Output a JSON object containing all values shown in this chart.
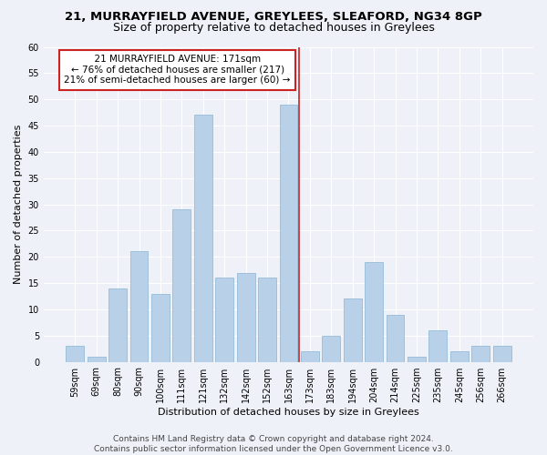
{
  "title": "21, MURRAYFIELD AVENUE, GREYLEES, SLEAFORD, NG34 8GP",
  "subtitle": "Size of property relative to detached houses in Greylees",
  "xlabel": "Distribution of detached houses by size in Greylees",
  "ylabel": "Number of detached properties",
  "categories": [
    "59sqm",
    "69sqm",
    "80sqm",
    "90sqm",
    "100sqm",
    "111sqm",
    "121sqm",
    "132sqm",
    "142sqm",
    "152sqm",
    "163sqm",
    "173sqm",
    "183sqm",
    "194sqm",
    "204sqm",
    "214sqm",
    "225sqm",
    "235sqm",
    "245sqm",
    "256sqm",
    "266sqm"
  ],
  "values": [
    3,
    1,
    14,
    21,
    13,
    29,
    47,
    16,
    17,
    16,
    49,
    2,
    5,
    12,
    19,
    9,
    1,
    6,
    2,
    3,
    3
  ],
  "bar_color": "#b8d0e8",
  "bar_edge_color": "#8ab4d4",
  "vline_index": 10.5,
  "annotation_line1": "  21 MURRAYFIELD AVENUE: 171sqm  ",
  "annotation_line2": "← 76% of detached houses are smaller (217)",
  "annotation_line3": "21% of semi-detached houses are larger (60) →",
  "annotation_box_color": "#ffffff",
  "annotation_box_edge_color": "#cc2222",
  "vline_color": "#cc2222",
  "ylim": [
    0,
    60
  ],
  "yticks": [
    0,
    5,
    10,
    15,
    20,
    25,
    30,
    35,
    40,
    45,
    50,
    55,
    60
  ],
  "background_color": "#eef2f8",
  "grid_color": "#ffffff",
  "title_fontsize": 9.5,
  "subtitle_fontsize": 9,
  "axis_label_fontsize": 8,
  "tick_fontsize": 7,
  "annotation_fontsize": 7.5,
  "footer_fontsize": 6.5,
  "footer_line1": "Contains HM Land Registry data © Crown copyright and database right 2024.",
  "footer_line2": "Contains public sector information licensed under the Open Government Licence v3.0."
}
